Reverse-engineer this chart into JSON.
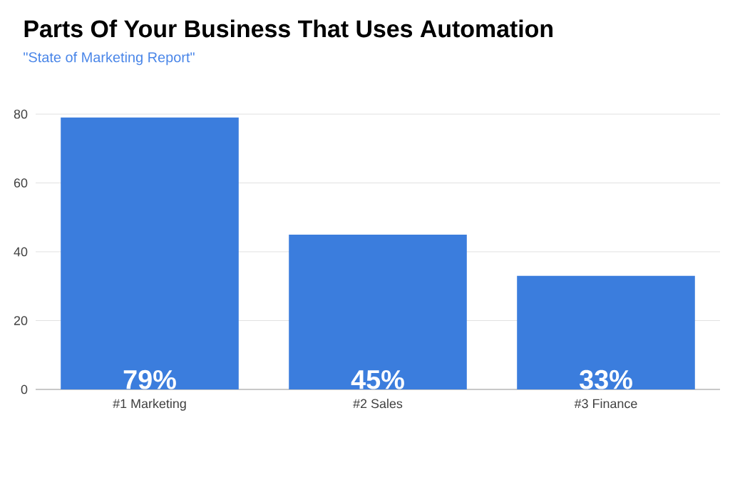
{
  "chart_data": {
    "type": "bar",
    "title": "Parts Of Your Business That Uses Automation",
    "subtitle": "\"State of Marketing Report\"",
    "categories": [
      "#1 Marketing",
      "#2 Sales",
      "#3 Finance"
    ],
    "values": [
      79,
      45,
      33
    ],
    "value_labels": [
      "79%",
      "45%",
      "33%"
    ],
    "color": "#3b7ddd",
    "ylim": [
      0,
      80
    ],
    "yticks": [
      0,
      20,
      40,
      60,
      80
    ],
    "grid": "y"
  }
}
